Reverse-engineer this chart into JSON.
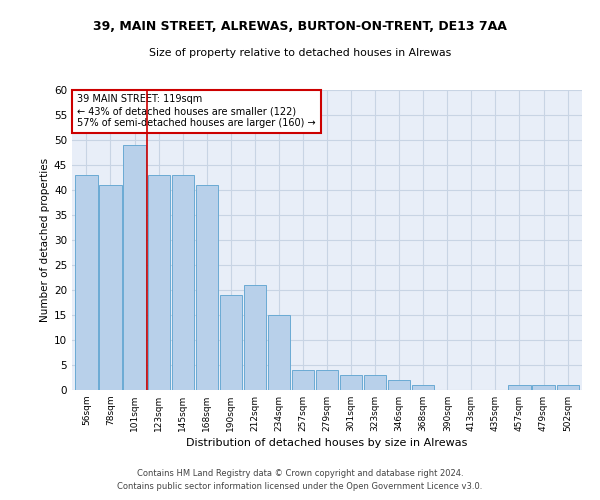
{
  "title1": "39, MAIN STREET, ALREWAS, BURTON-ON-TRENT, DE13 7AA",
  "title2": "Size of property relative to detached houses in Alrewas",
  "xlabel": "Distribution of detached houses by size in Alrewas",
  "ylabel": "Number of detached properties",
  "footer1": "Contains HM Land Registry data © Crown copyright and database right 2024.",
  "footer2": "Contains public sector information licensed under the Open Government Licence v3.0.",
  "bins": [
    "56sqm",
    "78sqm",
    "101sqm",
    "123sqm",
    "145sqm",
    "168sqm",
    "190sqm",
    "212sqm",
    "234sqm",
    "257sqm",
    "279sqm",
    "301sqm",
    "323sqm",
    "346sqm",
    "368sqm",
    "390sqm",
    "413sqm",
    "435sqm",
    "457sqm",
    "479sqm",
    "502sqm"
  ],
  "values": [
    43,
    41,
    49,
    43,
    43,
    41,
    19,
    21,
    15,
    4,
    4,
    3,
    3,
    2,
    1,
    0,
    0,
    0,
    1,
    1,
    1
  ],
  "bar_color": "#b8d0ea",
  "bar_edge_color": "#6aaad4",
  "grid_color": "#c8d4e4",
  "background_color": "#e8eef8",
  "annotation_box_color": "#ffffff",
  "annotation_border_color": "#cc0000",
  "vline_color": "#cc0000",
  "vline_x_index": 2,
  "annotation_text1": "39 MAIN STREET: 119sqm",
  "annotation_text2": "← 43% of detached houses are smaller (122)",
  "annotation_text3": "57% of semi-detached houses are larger (160) →",
  "ylim": [
    0,
    60
  ],
  "yticks": [
    0,
    5,
    10,
    15,
    20,
    25,
    30,
    35,
    40,
    45,
    50,
    55,
    60
  ]
}
